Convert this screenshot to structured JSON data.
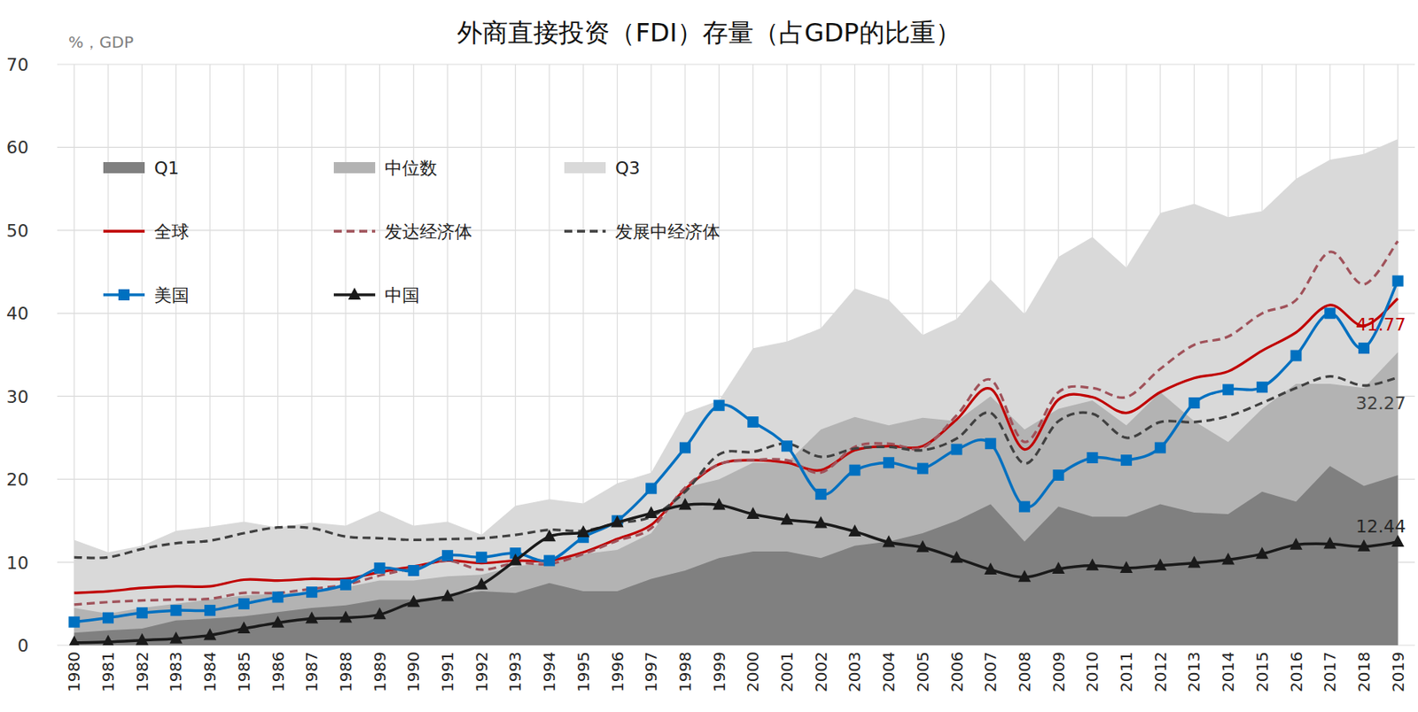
{
  "chart_data": {
    "type": "line",
    "title": "外商直接投资（FDI）存量（占GDP的比重）",
    "y_label": "%，GDP",
    "categories": [
      "1980",
      "1981",
      "1982",
      "1983",
      "1984",
      "1985",
      "1986",
      "1987",
      "1988",
      "1989",
      "1990",
      "1991",
      "1992",
      "1993",
      "1994",
      "1995",
      "1996",
      "1997",
      "1998",
      "1999",
      "2000",
      "2001",
      "2002",
      "2003",
      "2004",
      "2005",
      "2006",
      "2007",
      "2008",
      "2009",
      "2010",
      "2011",
      "2012",
      "2013",
      "2014",
      "2015",
      "2016",
      "2017",
      "2018",
      "2019"
    ],
    "series": [
      {
        "name": "Q1",
        "type": "area",
        "color": "#808080",
        "values": [
          1.5,
          1.8,
          2,
          3,
          3.2,
          3.5,
          4,
          4.5,
          4.8,
          5.5,
          5.5,
          6,
          6.5,
          6.3,
          7.5,
          6.5,
          6.5,
          8,
          9,
          10.5,
          11.3,
          11.3,
          10.5,
          12,
          12.5,
          13.5,
          15,
          17,
          12.5,
          16.7,
          15.5,
          15.5,
          17,
          16,
          15.8,
          18.5,
          17.3,
          21.6,
          19.2,
          20.5
        ]
      },
      {
        "name": "中位数",
        "type": "area",
        "color": "#b3b3b3",
        "values": [
          4.5,
          3.8,
          4.5,
          5,
          5.5,
          6,
          6.2,
          6.5,
          7,
          7.8,
          7.8,
          8.3,
          8.5,
          9.5,
          10,
          11,
          11.5,
          13.5,
          19,
          20,
          22,
          22,
          26,
          27.5,
          26.5,
          27.4,
          27,
          30,
          26,
          28.5,
          29.5,
          26.5,
          30.5,
          27,
          24.5,
          28.5,
          31.5,
          31.5,
          31,
          35.3
        ]
      },
      {
        "name": "Q3",
        "type": "area",
        "color": "#d9d9d9",
        "values": [
          12.7,
          11.2,
          12,
          13.8,
          14.3,
          14.9,
          14.2,
          14.8,
          14.4,
          16.2,
          14.4,
          14.9,
          13.3,
          16.8,
          17.6,
          17.1,
          19.5,
          20.8,
          28,
          29.5,
          35.8,
          36.6,
          38.2,
          43,
          41.6,
          37.4,
          39.3,
          44.1,
          39.9,
          46.8,
          49.2,
          45.5,
          52.1,
          53.2,
          51.6,
          52.3,
          56.2,
          58.5,
          59.2,
          61
        ]
      },
      {
        "name": "全球",
        "type": "line",
        "color": "#c00000",
        "line_style": "solid",
        "marker": "none",
        "values": [
          6.3,
          6.5,
          6.9,
          7.1,
          7.1,
          7.9,
          7.8,
          8,
          8,
          8.8,
          9.5,
          10.2,
          9.9,
          10.2,
          10.2,
          11.2,
          12.8,
          14.5,
          18.8,
          21.8,
          22.3,
          22,
          21.1,
          23.5,
          24,
          24,
          27.2,
          30.9,
          23.6,
          29.6,
          29.9,
          28,
          30.5,
          32.2,
          33,
          35.5,
          37.7,
          41,
          38.5,
          41.77
        ]
      },
      {
        "name": "发达经济体",
        "type": "line",
        "color": "#a0525a",
        "line_style": "dashed",
        "marker": "none",
        "values": [
          4.9,
          5.2,
          5.4,
          5.5,
          5.6,
          6.3,
          6.3,
          6.8,
          7.3,
          8.4,
          9.3,
          10.2,
          9.1,
          9.9,
          9.8,
          11,
          12.6,
          14.1,
          19,
          21.8,
          22.3,
          22.3,
          20.8,
          23.9,
          24.3,
          23.8,
          27.7,
          32,
          24.5,
          30.5,
          31,
          29.9,
          33.3,
          36.2,
          37.2,
          40,
          41.6,
          47.4,
          43.5,
          48.7
        ]
      },
      {
        "name": "发展中经济体",
        "type": "line",
        "color": "#404040",
        "line_style": "dashed",
        "marker": "none",
        "values": [
          10.6,
          10.6,
          11.6,
          12.3,
          12.6,
          13.5,
          14.2,
          14.1,
          13.1,
          12.9,
          12.7,
          12.8,
          12.9,
          13.3,
          13.9,
          13.8,
          14.7,
          15.5,
          18.5,
          23,
          23.3,
          24.3,
          22.7,
          23.7,
          23.9,
          23.5,
          24.9,
          28,
          21.9,
          27,
          27.9,
          25,
          26.9,
          26.9,
          27.6,
          29.2,
          31,
          32.4,
          31.3,
          32.27
        ]
      },
      {
        "name": "美国",
        "type": "line",
        "color": "#0070c0",
        "line_style": "solid",
        "marker": "square",
        "values": [
          2.8,
          3.3,
          3.9,
          4.2,
          4.2,
          5,
          5.8,
          6.4,
          7.3,
          9.3,
          9,
          10.8,
          10.6,
          11.1,
          10.2,
          13,
          15,
          18.9,
          23.8,
          28.9,
          26.9,
          24,
          18.2,
          21.1,
          22,
          21.3,
          23.6,
          24.3,
          16.7,
          20.5,
          22.6,
          22.3,
          23.8,
          29.2,
          30.8,
          31.1,
          34.9,
          40,
          35.8,
          43.9
        ]
      },
      {
        "name": "中国",
        "type": "line",
        "color": "#1a1a1a",
        "line_style": "solid",
        "marker": "triangle",
        "values": [
          0.3,
          0.4,
          0.6,
          0.8,
          1.2,
          2,
          2.7,
          3.2,
          3.3,
          3.7,
          5.2,
          5.9,
          7.3,
          10.2,
          13.1,
          13.6,
          14.8,
          15.9,
          16.9,
          16.9,
          15.8,
          15.1,
          14.7,
          13.7,
          12.4,
          11.8,
          10.5,
          9.1,
          8.2,
          9.2,
          9.6,
          9.3,
          9.6,
          9.9,
          10.3,
          11,
          12.1,
          12.2,
          11.9,
          12.44
        ]
      }
    ],
    "ylim": [
      0,
      70
    ],
    "yticks": [
      0,
      10,
      20,
      30,
      40,
      50,
      60,
      70
    ],
    "grid": true,
    "legend": "top-left",
    "annotations": [
      {
        "text": "41.77",
        "x": "2019",
        "y": 41.77,
        "color": "#c00000"
      },
      {
        "text": "32.27",
        "x": "2019",
        "y": 32.27,
        "color": "#404040"
      },
      {
        "text": "12.44",
        "x": "2019",
        "y": 12.44,
        "color": "#262626"
      }
    ]
  }
}
